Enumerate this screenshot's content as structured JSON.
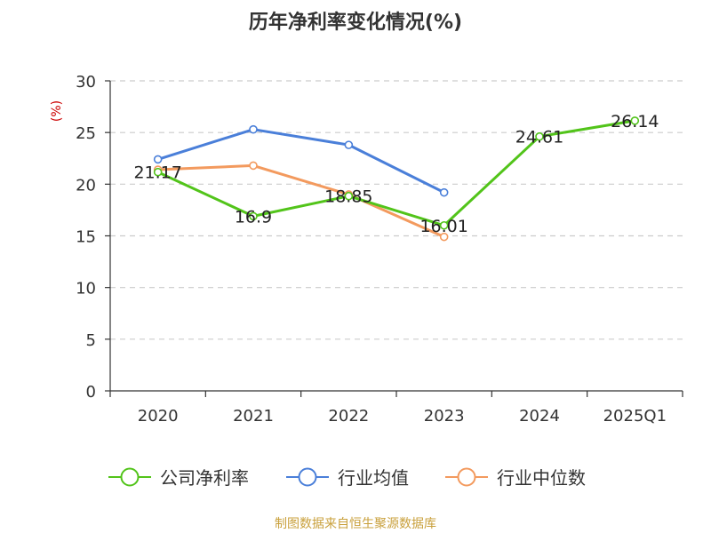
{
  "chart_data": {
    "type": "line",
    "title": "历年净利率变化情况(%)",
    "ylabel": "(%)",
    "xlabel": "",
    "ylim": [
      0,
      30
    ],
    "yticks": [
      "0",
      "5",
      "10",
      "15",
      "20",
      "25",
      "30"
    ],
    "categories": [
      "2020",
      "2021",
      "2022",
      "2023",
      "2024",
      "2025Q1"
    ],
    "grid": true,
    "legend_position": "bottom",
    "series": [
      {
        "name": "公司净利率",
        "color": "#52c41a",
        "values": [
          21.17,
          16.9,
          18.85,
          16.01,
          24.61,
          26.14
        ],
        "labels": [
          "21.17",
          "16.9",
          "18.85",
          "16.01",
          "24.61",
          "26.14"
        ]
      },
      {
        "name": "行业均值",
        "color": "#4a7fd9",
        "values": [
          22.4,
          25.3,
          23.8,
          19.2,
          null,
          null
        ]
      },
      {
        "name": "行业中位数",
        "color": "#f39a5e",
        "values": [
          21.4,
          21.8,
          19.0,
          14.9,
          null,
          null
        ]
      }
    ]
  },
  "source": {
    "text": "制图数据来自恒生聚源数据库",
    "color": "#c9a03c"
  },
  "colors": {
    "axis": "#333333",
    "grid": "#cccccc",
    "unit": "#cc0000"
  }
}
